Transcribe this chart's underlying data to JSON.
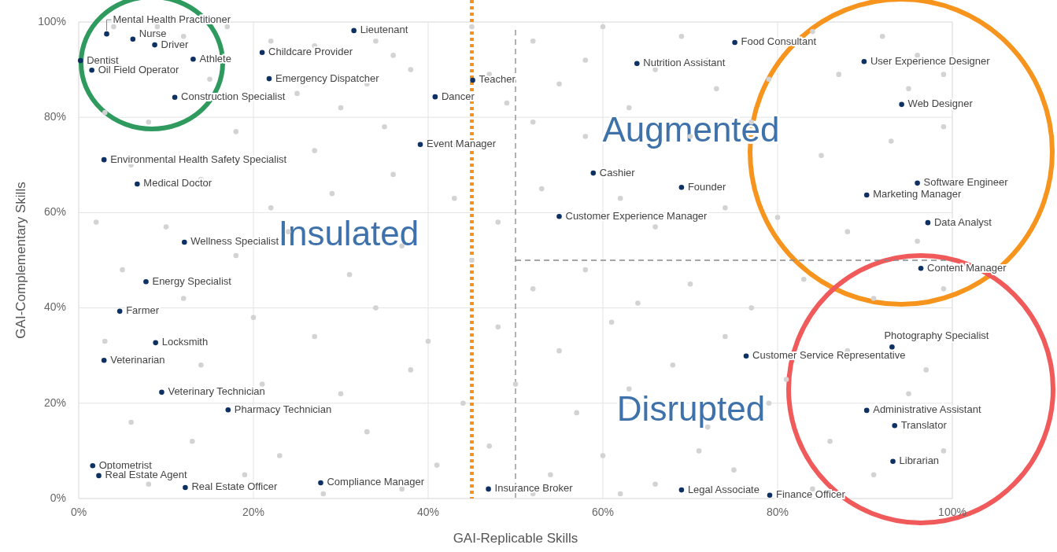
{
  "chart_data": {
    "type": "scatter",
    "xlabel": "GAI-Replicable Skills",
    "ylabel": "GAI-Complementary Skills",
    "xlim": [
      0,
      100
    ],
    "ylim": [
      0,
      100
    ],
    "xticks": [
      {
        "value": 0,
        "label": "0%"
      },
      {
        "value": 20,
        "label": "20%"
      },
      {
        "value": 40,
        "label": "40%"
      },
      {
        "value": 60,
        "label": "60%"
      },
      {
        "value": 80,
        "label": "80%"
      },
      {
        "value": 100,
        "label": "100%"
      }
    ],
    "yticks": [
      {
        "value": 0,
        "label": "0%"
      },
      {
        "value": 20,
        "label": "20%"
      },
      {
        "value": 40,
        "label": "40%"
      },
      {
        "value": 60,
        "label": "60%"
      },
      {
        "value": 80,
        "label": "80%"
      },
      {
        "value": 100,
        "label": "100%"
      }
    ],
    "grid": true,
    "marker": "circle",
    "series": [
      {
        "color": "#d3d3d3",
        "x": [
          4,
          9,
          12,
          17,
          22,
          27,
          34,
          36,
          38,
          45,
          52,
          60,
          69,
          72,
          84,
          92,
          96,
          99,
          15,
          25,
          30,
          33,
          47,
          49,
          55,
          58,
          66,
          73,
          79,
          87,
          95,
          3,
          8,
          18,
          27,
          35,
          43,
          52,
          58,
          63,
          70,
          77,
          85,
          93,
          99,
          6,
          14,
          22,
          29,
          36,
          43,
          48,
          53,
          62,
          66,
          74,
          80,
          88,
          96,
          2,
          10,
          18,
          24,
          31,
          37,
          45,
          52,
          58,
          64,
          70,
          77,
          83,
          91,
          99,
          5,
          12,
          20,
          27,
          34,
          40,
          48,
          55,
          61,
          68,
          74,
          81,
          88,
          97,
          3,
          14,
          21,
          30,
          38,
          44,
          50,
          57,
          63,
          72,
          79,
          86,
          95,
          6,
          13,
          23,
          33,
          41,
          47,
          54,
          60,
          66,
          75,
          84,
          91,
          99,
          8,
          19,
          28,
          37,
          52,
          62,
          71
        ],
        "values": [
          99,
          99,
          97,
          99,
          96,
          95,
          96,
          93,
          90,
          99,
          96,
          99,
          97,
          92,
          98,
          97,
          93,
          89,
          88,
          85,
          82,
          87,
          89,
          83,
          87,
          92,
          90,
          86,
          88,
          89,
          86,
          81,
          79,
          77,
          73,
          78,
          74,
          79,
          76,
          82,
          76,
          79,
          72,
          75,
          78,
          70,
          67,
          61,
          64,
          68,
          63,
          58,
          65,
          63,
          57,
          61,
          59,
          56,
          54,
          58,
          57,
          51,
          56,
          47,
          53,
          50,
          44,
          48,
          41,
          45,
          40,
          46,
          42,
          44,
          48,
          42,
          38,
          34,
          40,
          33,
          36,
          31,
          37,
          28,
          34,
          25,
          31,
          27,
          33,
          28,
          24,
          22,
          27,
          20,
          24,
          18,
          23,
          15,
          20,
          12,
          22,
          16,
          12,
          9,
          14,
          7,
          11,
          5,
          9,
          3,
          6,
          2,
          5,
          10,
          3,
          5,
          1,
          2,
          1,
          1,
          10
        ]
      },
      {
        "color": "#0e3163",
        "x": [
          3.2,
          6.2,
          8.7,
          0.2,
          13.1,
          1.5,
          11.0,
          21.0,
          21.8,
          31.5,
          45.1,
          40.8,
          39.1,
          2.9,
          6.7,
          12.1,
          7.7,
          4.7,
          8.8,
          2.9,
          9.5,
          17.1,
          1.6,
          2.3,
          12.2,
          27.7,
          46.9,
          75.1,
          63.9,
          89.9,
          94.2,
          58.9,
          69.0,
          55.0,
          96.0,
          90.2,
          97.2,
          96.4,
          93.1,
          76.4,
          90.2,
          93.4,
          93.2,
          69.0,
          79.1
        ],
        "values": [
          97.5,
          96.4,
          95.2,
          91.9,
          92.2,
          89.9,
          84.2,
          93.6,
          88.1,
          98.2,
          87.8,
          84.3,
          74.3,
          71.1,
          66.0,
          53.8,
          45.5,
          39.3,
          32.7,
          29.0,
          22.3,
          18.6,
          6.9,
          4.8,
          2.3,
          3.3,
          2.0,
          95.7,
          91.3,
          91.7,
          82.7,
          68.3,
          65.3,
          59.2,
          66.2,
          63.7,
          57.9,
          48.3,
          31.8,
          29.9,
          18.5,
          15.3,
          7.8,
          1.8,
          0.7
        ]
      }
    ],
    "ref_lines": [
      {
        "axis": "x",
        "value": 45,
        "color": "#f7941d",
        "line_style": "dotted"
      },
      {
        "axis": "x",
        "value": 50,
        "color": "#888888",
        "line_style": "dashed"
      },
      {
        "axis": "y",
        "value": 50,
        "color": "#888888",
        "line_style": "dashed"
      }
    ],
    "annotations": [
      "Insulated",
      "Augmented",
      "Disrupted",
      {
        "text": "Mental Health Practitioner",
        "x": 3.2,
        "y": 97.5
      },
      {
        "text": "Nurse",
        "x": 6.2,
        "y": 96.4
      },
      {
        "text": "Driver",
        "x": 8.7,
        "y": 95.2
      },
      {
        "text": "Dentist",
        "x": 0.2,
        "y": 91.9
      },
      {
        "text": "Athlete",
        "x": 13.1,
        "y": 92.2
      },
      {
        "text": "Oil Field Operator",
        "x": 1.5,
        "y": 89.9
      },
      {
        "text": "Construction Specialist",
        "x": 11.0,
        "y": 84.2
      },
      {
        "text": "Childcare Provider",
        "x": 21.0,
        "y": 93.6
      },
      {
        "text": "Emergency Dispatcher",
        "x": 21.8,
        "y": 88.1
      },
      {
        "text": "Lieutenant",
        "x": 31.5,
        "y": 98.2
      },
      {
        "text": "Teacher",
        "x": 45.1,
        "y": 87.8
      },
      {
        "text": "Dancer",
        "x": 40.8,
        "y": 84.3
      },
      {
        "text": "Event Manager",
        "x": 39.1,
        "y": 74.3
      },
      {
        "text": "Environmental Health Safety Specialist",
        "x": 2.9,
        "y": 71.1
      },
      {
        "text": "Medical Doctor",
        "x": 6.7,
        "y": 66.0
      },
      {
        "text": "Wellness Specialist",
        "x": 12.1,
        "y": 53.8
      },
      {
        "text": "Energy Specialist",
        "x": 7.7,
        "y": 45.5
      },
      {
        "text": "Farmer",
        "x": 4.7,
        "y": 39.3
      },
      {
        "text": "Locksmith",
        "x": 8.8,
        "y": 32.7
      },
      {
        "text": "Veterinarian",
        "x": 2.9,
        "y": 29.0
      },
      {
        "text": "Veterinary Technician",
        "x": 9.5,
        "y": 22.3
      },
      {
        "text": "Pharmacy Technician",
        "x": 17.1,
        "y": 18.6
      },
      {
        "text": "Optometrist",
        "x": 1.6,
        "y": 6.9
      },
      {
        "text": "Real Estate Agent",
        "x": 2.3,
        "y": 4.8
      },
      {
        "text": "Real Estate Officer",
        "x": 12.2,
        "y": 2.3
      },
      {
        "text": "Compliance Manager",
        "x": 27.7,
        "y": 3.3
      },
      {
        "text": "Insurance Broker",
        "x": 46.9,
        "y": 2.0
      },
      {
        "text": "Food Consultant",
        "x": 75.1,
        "y": 95.7
      },
      {
        "text": "Nutrition Assistant",
        "x": 63.9,
        "y": 91.3
      },
      {
        "text": "User Experience Designer",
        "x": 89.9,
        "y": 91.7
      },
      {
        "text": "Web Designer",
        "x": 94.2,
        "y": 82.7
      },
      {
        "text": "Cashier",
        "x": 58.9,
        "y": 68.3
      },
      {
        "text": "Founder",
        "x": 69.0,
        "y": 65.3
      },
      {
        "text": "Customer Experience Manager",
        "x": 55.0,
        "y": 59.2
      },
      {
        "text": "Software Engineer",
        "x": 96.0,
        "y": 66.2
      },
      {
        "text": "Marketing Manager",
        "x": 90.2,
        "y": 63.7
      },
      {
        "text": "Data Analyst",
        "x": 97.2,
        "y": 57.9
      },
      {
        "text": "Content Manager",
        "x": 96.4,
        "y": 48.3
      },
      {
        "text": "Photography Specialist",
        "x": 93.1,
        "y": 31.8
      },
      {
        "text": "Customer Service Representative",
        "x": 76.4,
        "y": 29.9
      },
      {
        "text": "Administrative Assistant",
        "x": 90.2,
        "y": 18.5
      },
      {
        "text": "Translator",
        "x": 93.4,
        "y": 15.3
      },
      {
        "text": "Librarian",
        "x": 93.2,
        "y": 7.8
      },
      {
        "text": "Legal Associate",
        "x": 69.0,
        "y": 1.8
      },
      {
        "text": "Finance Officer",
        "x": 79.1,
        "y": 0.7
      }
    ]
  }
}
